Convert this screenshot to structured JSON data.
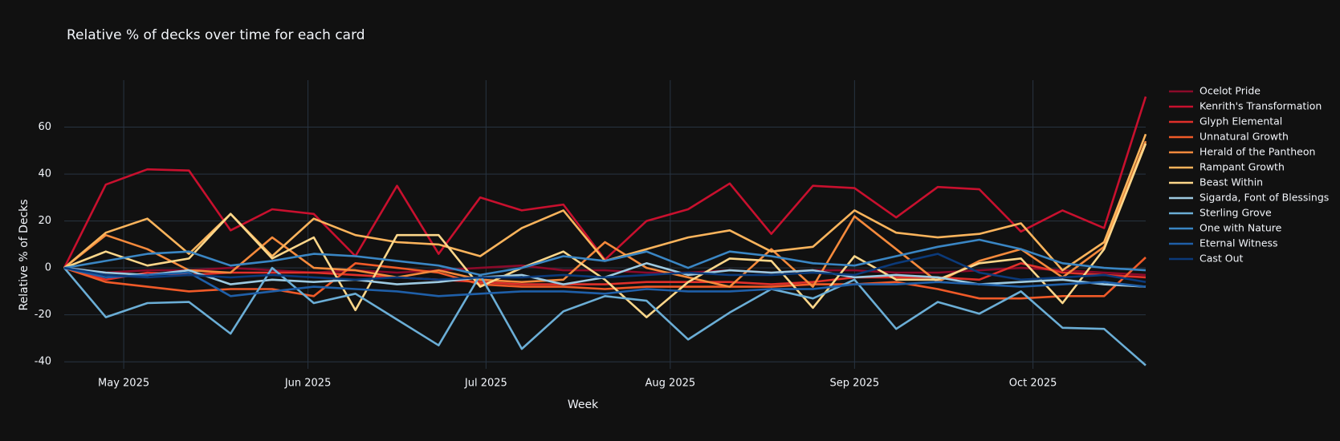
{
  "chart_data": {
    "type": "line",
    "title": "Relative  % of decks over time for each card",
    "x_label": "Week",
    "y_label": "Relative % of Decks",
    "x": [
      0,
      1,
      2,
      3,
      4,
      5,
      6,
      7,
      8,
      9,
      10,
      11,
      12,
      13,
      14,
      15,
      16,
      17,
      18,
      19,
      20,
      21,
      22,
      23,
      24,
      25,
      26
    ],
    "xlim": [
      0,
      26
    ],
    "xticks": [
      {
        "value": 1.43,
        "label": "May 2025"
      },
      {
        "value": 5.86,
        "label": "Jun 2025"
      },
      {
        "value": 10.14,
        "label": "Jul 2025"
      },
      {
        "value": 14.57,
        "label": "Aug 2025"
      },
      {
        "value": 19,
        "label": "Sep 2025"
      },
      {
        "value": 23.29,
        "label": "Oct 2025"
      }
    ],
    "ylim": [
      -43,
      80
    ],
    "yticks": [
      -40,
      -20,
      0,
      20,
      40,
      60
    ],
    "grid": true,
    "legend": "right",
    "series": [
      {
        "name": "Ocelot Pride",
        "color": "#8b0a2a",
        "values": [
          0,
          -2,
          -1,
          -1,
          0,
          -1,
          -2,
          -1,
          -2,
          -1,
          0,
          1,
          -1,
          -1,
          -2,
          -2,
          -1,
          -2,
          -1,
          -1,
          -2,
          -2,
          -1,
          0,
          -1,
          -2,
          -3
        ]
      },
      {
        "name": "Kenrith's Transformation",
        "color": "#c8102e",
        "values": [
          0,
          35.5,
          42,
          41.5,
          16,
          25,
          23,
          5,
          35,
          6,
          30,
          24.5,
          27,
          3.5,
          20,
          25,
          36,
          14.5,
          35,
          34,
          21.5,
          34.5,
          33.5,
          15.5,
          24.5,
          17,
          73
        ]
      },
      {
        "name": "Glyph Elemental",
        "color": "#e0302a",
        "values": [
          0,
          -5,
          -2,
          -3,
          -2,
          -2,
          -2,
          -3,
          -4,
          -5,
          -6,
          -7,
          -7,
          -7,
          -6,
          -6,
          -6,
          -7,
          -6,
          -4,
          -4,
          -4,
          -5,
          2,
          -2,
          -3,
          -4
        ]
      },
      {
        "name": "Unnatural Growth",
        "color": "#f05a28",
        "values": [
          0,
          -6,
          -8,
          -10,
          -9,
          -9,
          -12,
          2,
          0,
          -2,
          -7,
          -8,
          -8,
          -9,
          -8,
          -8,
          -8,
          -8,
          -7,
          -7,
          -6,
          -9,
          -13,
          -13,
          -12,
          -12,
          4.5
        ]
      },
      {
        "name": "Herald of the Pantheon",
        "color": "#f58a3c",
        "values": [
          0,
          14,
          8,
          -1,
          -2,
          13,
          0,
          -1,
          -4,
          -1,
          -5,
          -6,
          -5,
          11,
          0,
          -4,
          -8,
          8,
          -8,
          22,
          8,
          -6,
          3,
          8,
          -4,
          9,
          54
        ]
      },
      {
        "name": "Rampant Growth",
        "color": "#fbb45c",
        "values": [
          0,
          15,
          21,
          6,
          23,
          5,
          21,
          14,
          11,
          10,
          5,
          17,
          24.5,
          3,
          8,
          13,
          16,
          7,
          9,
          24.5,
          15,
          13,
          14.5,
          19,
          -1,
          11,
          57
        ]
      },
      {
        "name": "Beast Within",
        "color": "#fdd78a",
        "values": [
          0,
          7,
          1,
          4,
          23,
          4,
          13,
          -18,
          14,
          14,
          -8,
          0,
          7,
          -5,
          -21,
          -6,
          4,
          3,
          -17,
          5,
          -5,
          -5,
          2,
          4,
          -15,
          8,
          53
        ]
      },
      {
        "name": "Sigarda, Font of Blessings",
        "color": "#9ecae1",
        "values": [
          0,
          -2,
          -3,
          -1,
          -7,
          -5,
          -6,
          -5,
          -7,
          -6,
          -4,
          -3,
          -7,
          -4,
          2,
          -3,
          -1,
          -2,
          -1,
          -4,
          -3,
          -4,
          -7,
          -6,
          -5,
          -7,
          -8
        ]
      },
      {
        "name": "Sterling Grove",
        "color": "#6baed6",
        "values": [
          0,
          -21,
          -15,
          -14.5,
          -28,
          0,
          -15,
          -11,
          -22,
          -33,
          -3,
          -34.5,
          -18.5,
          -12,
          -14,
          -30.5,
          -19,
          -9,
          -13,
          -5,
          -26,
          -14.5,
          -19.5,
          -10,
          -25.5,
          -26,
          -41.5
        ]
      },
      {
        "name": "One with Nature",
        "color": "#3a86c4",
        "values": [
          0,
          3,
          6,
          7,
          1,
          3,
          6,
          5,
          3,
          1,
          -3,
          0,
          5,
          3,
          7,
          0,
          7,
          5,
          2,
          1,
          5,
          9,
          12,
          8,
          2,
          0,
          -1
        ]
      },
      {
        "name": "Eternal Witness",
        "color": "#1f5fa8",
        "values": [
          0,
          -4,
          -3,
          -2,
          -12,
          -10,
          -8,
          -9,
          -10,
          -12,
          -11,
          -10,
          -10,
          -11,
          -9,
          -10,
          -10,
          -9,
          -9,
          -7,
          -7,
          -6,
          -7,
          -8,
          -7,
          -6,
          -8
        ]
      },
      {
        "name": "Cast Out",
        "color": "#0b3a7a",
        "values": [
          0,
          -3,
          -4,
          -3,
          -4,
          -3,
          -4,
          -5,
          -4,
          -5,
          -4,
          -4,
          -3,
          -4,
          -3,
          -2,
          -3,
          -3,
          -2,
          -3,
          2,
          6,
          -2,
          -5,
          -4,
          -3,
          -6
        ]
      }
    ]
  }
}
